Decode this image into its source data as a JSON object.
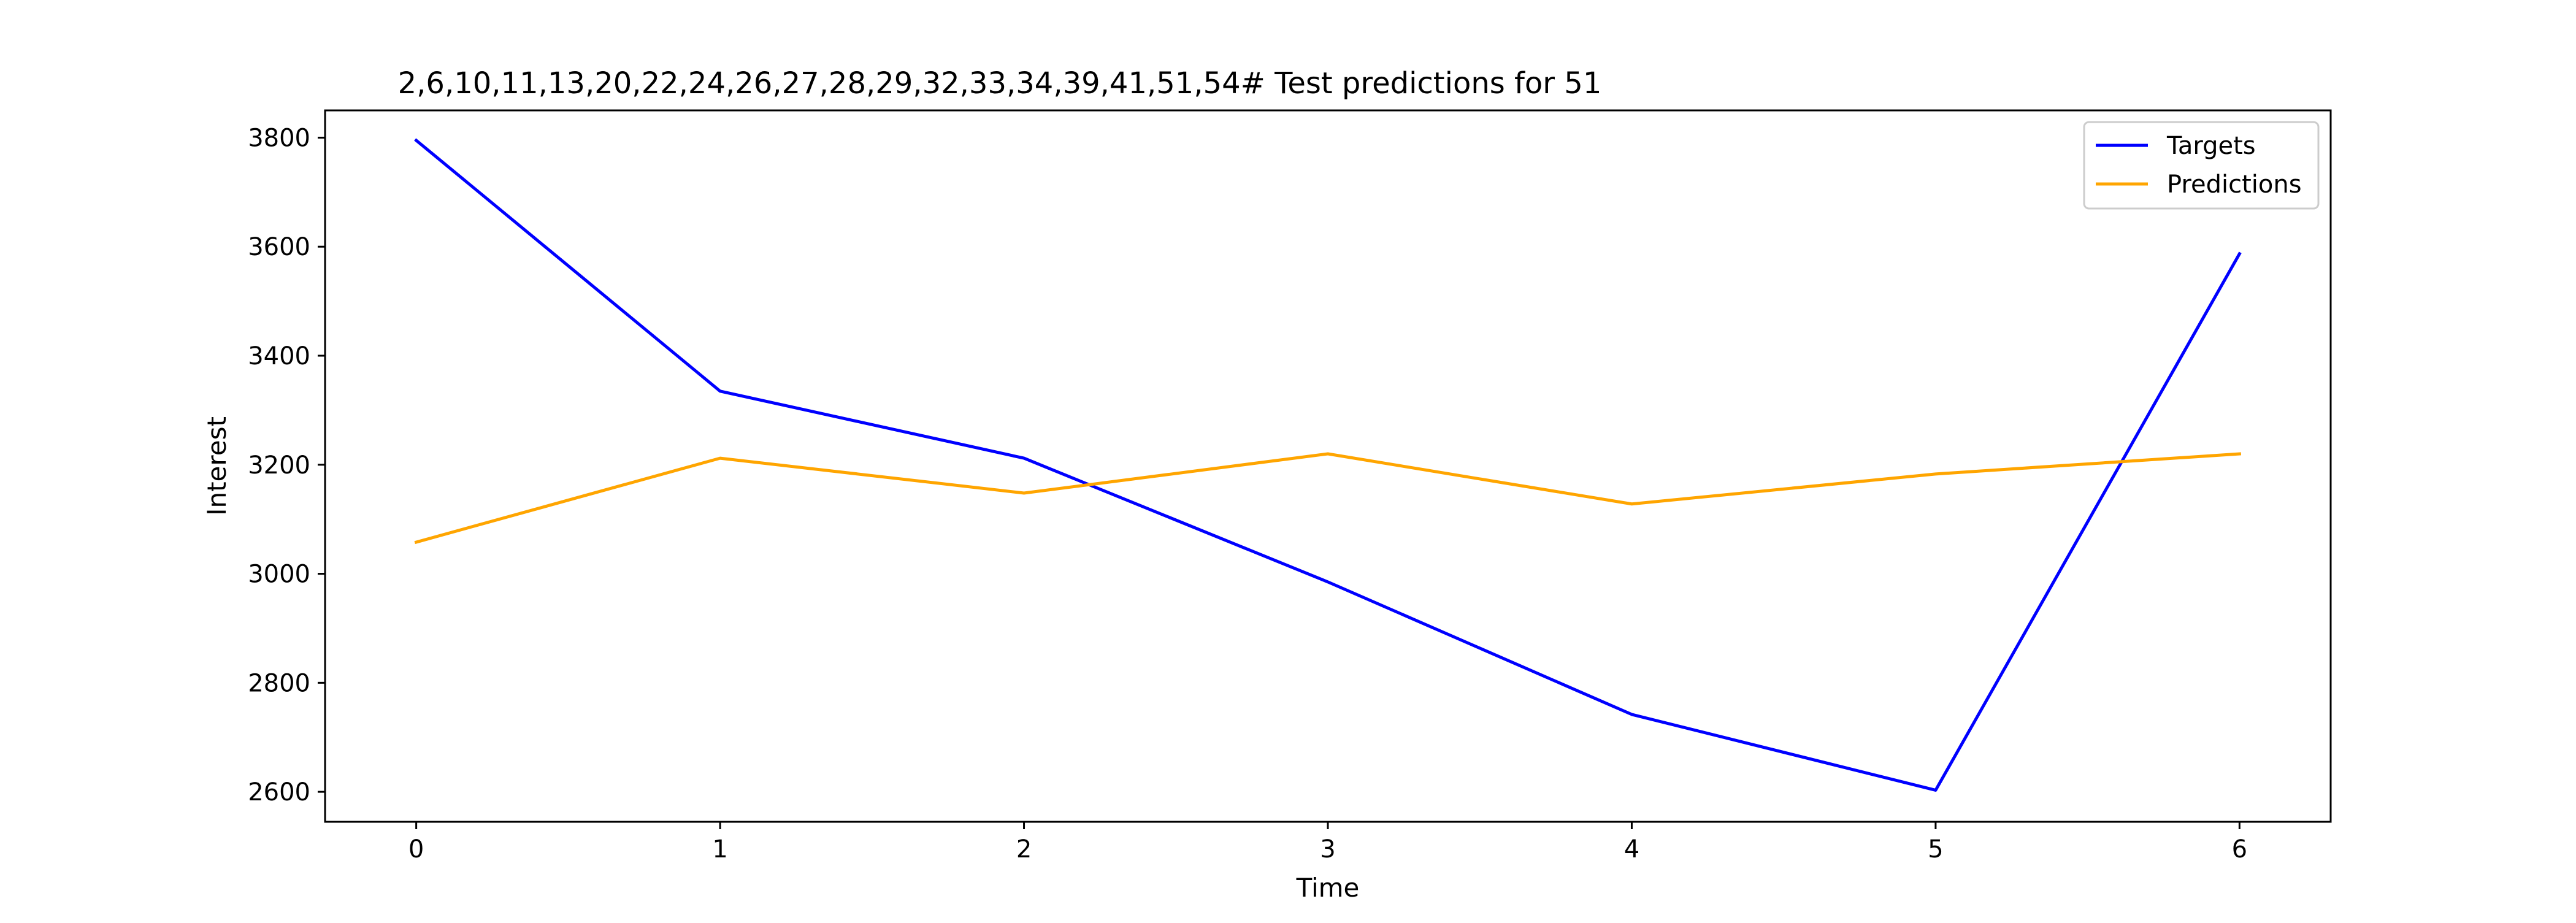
{
  "chart_data": {
    "type": "line",
    "title": "2,6,10,11,13,20,22,24,26,27,28,29,32,33,34,39,41,51,54# Test predictions for 51",
    "xlabel": "Time",
    "ylabel": "Interest",
    "x": [
      0,
      1,
      2,
      3,
      4,
      5,
      6
    ],
    "xlim": [
      -0.3,
      6.3
    ],
    "ylim": [
      2545,
      3850
    ],
    "xticks": [
      0,
      1,
      2,
      3,
      4,
      5,
      6
    ],
    "yticks": [
      2600,
      2800,
      3000,
      3200,
      3400,
      3600,
      3800
    ],
    "grid": false,
    "legend_position": "top-right",
    "series": [
      {
        "name": "Targets",
        "color": "#0000ff",
        "values": [
          3795,
          3335,
          3212,
          2985,
          2742,
          2603,
          3587
        ]
      },
      {
        "name": "Predictions",
        "color": "#ffa500",
        "values": [
          3058,
          3212,
          3148,
          3220,
          3128,
          3183,
          3220
        ]
      }
    ]
  }
}
